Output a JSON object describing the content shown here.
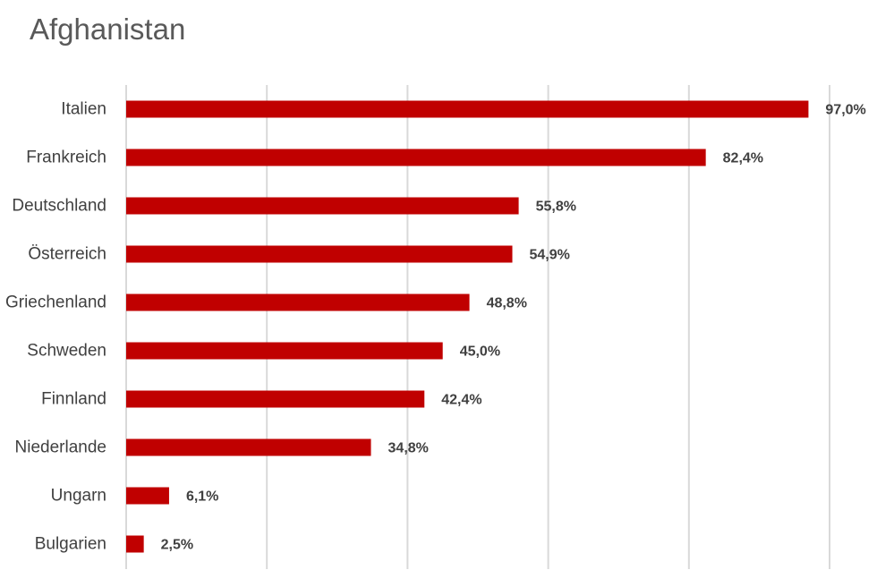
{
  "chart_data": {
    "type": "bar",
    "orientation": "horizontal",
    "title": "Afghanistan",
    "categories": [
      "Italien",
      "Frankreich",
      "Deutschland",
      "Österreich",
      "Griechenland",
      "Schweden",
      "Finnland",
      "Niederlande",
      "Ungarn",
      "Bulgarien"
    ],
    "values": [
      97.0,
      82.4,
      55.8,
      54.9,
      48.8,
      45.0,
      42.4,
      34.8,
      6.1,
      2.5
    ],
    "value_labels": [
      "97,0%",
      "82,4%",
      "55,8%",
      "54,9%",
      "48,8%",
      "45,0%",
      "42,4%",
      "34,8%",
      "6,1%",
      "2,5%"
    ],
    "xlim": [
      0,
      100
    ],
    "grid": true,
    "legend": "none",
    "bar_color": "#C00000"
  }
}
